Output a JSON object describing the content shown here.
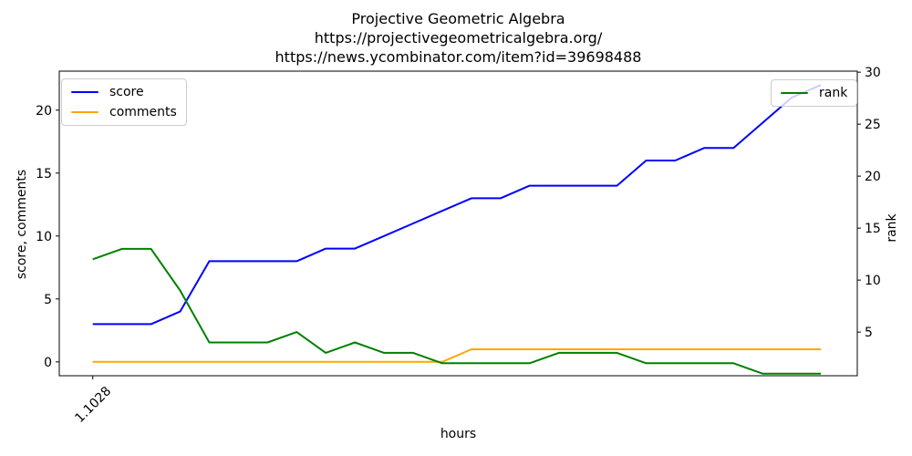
{
  "figure": {
    "title_lines": [
      "Projective Geometric Algebra",
      "https://projectivegeometricalgebra.org/",
      "https://news.ycombinator.com/item?id=39698488"
    ],
    "xlabel": "hours",
    "ylabel_left": "score, comments",
    "ylabel_right": "rank"
  },
  "chart_data": {
    "type": "line",
    "title": "Projective Geometric Algebra",
    "xlabel": "hours",
    "ylabel_left": "score, comments",
    "ylabel_right": "rank",
    "x_mode": "index",
    "x_count": 26,
    "x_tick": {
      "index": 0,
      "label": "1.1028"
    },
    "xlim": [
      -1.15,
      26.25
    ],
    "ylim_left": [
      -1.1,
      23.1
    ],
    "ylim_right": [
      0.8,
      30.1
    ],
    "yticks_left": [
      0,
      5,
      10,
      15,
      20
    ],
    "yticks_right": [
      5,
      10,
      15,
      20,
      25,
      30
    ],
    "grid": false,
    "legend_positions": [
      "upper left",
      "upper right"
    ],
    "series": [
      {
        "name": "score",
        "axis": "left",
        "color": "#0000ff",
        "values": [
          3,
          3,
          3,
          4,
          8,
          8,
          8,
          8,
          9,
          9,
          10,
          11,
          12,
          13,
          13,
          14,
          14,
          14,
          14,
          16,
          16,
          17,
          17,
          19,
          21,
          22
        ]
      },
      {
        "name": "comments",
        "axis": "left",
        "color": "#ffa500",
        "values": [
          0,
          0,
          0,
          0,
          0,
          0,
          0,
          0,
          0,
          0,
          0,
          0,
          0,
          1,
          1,
          1,
          1,
          1,
          1,
          1,
          1,
          1,
          1,
          1,
          1,
          1
        ]
      },
      {
        "name": "rank",
        "axis": "right",
        "color": "#008000",
        "values": [
          12,
          13,
          13,
          9,
          4,
          4,
          4,
          5,
          3,
          4,
          3,
          3,
          2,
          2,
          2,
          2,
          3,
          3,
          3,
          2,
          2,
          2,
          2,
          1,
          1,
          1
        ]
      }
    ]
  }
}
